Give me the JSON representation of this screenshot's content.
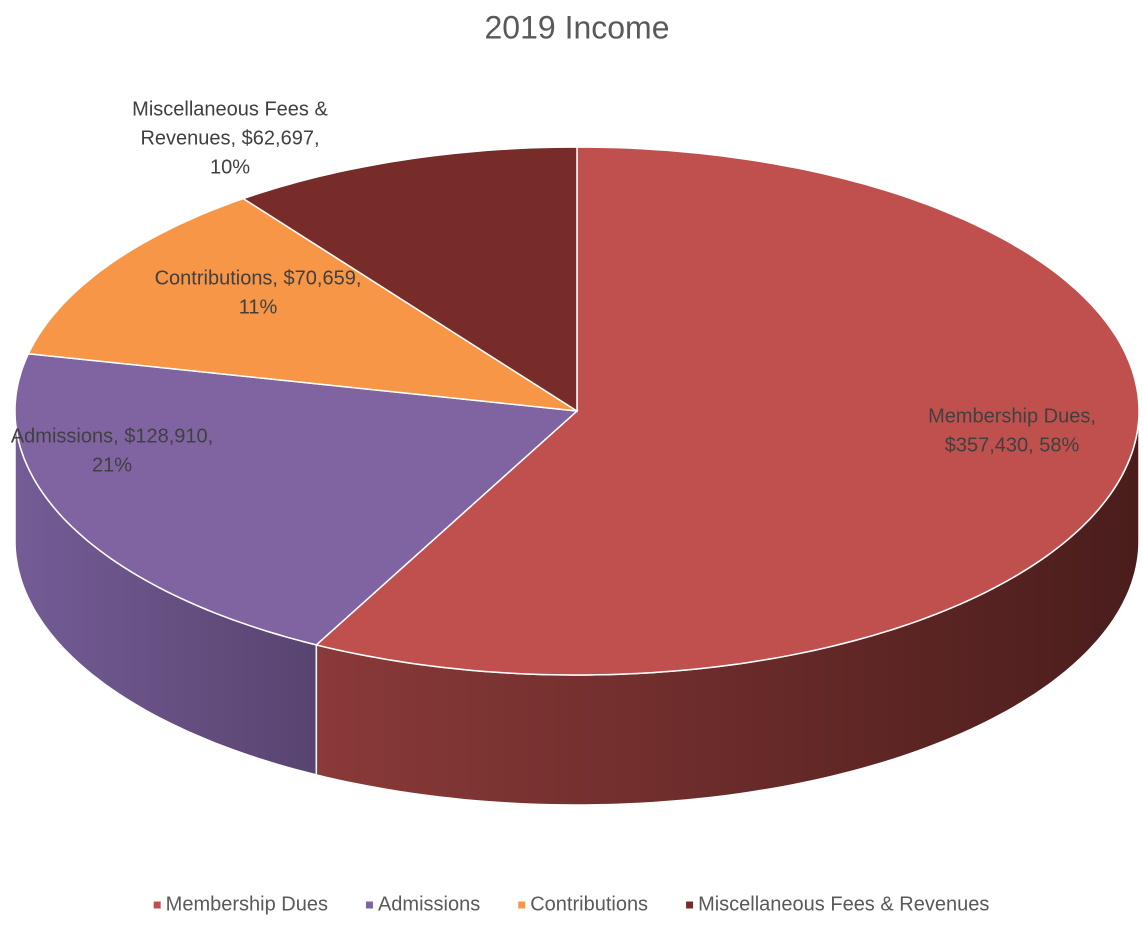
{
  "chart_data": {
    "type": "pie3d",
    "title": "2019 Income",
    "categories": [
      "Membership Dues",
      "Admissions",
      "Contributions",
      "Miscellaneous Fees & Revenues"
    ],
    "values": [
      357430,
      128910,
      70659,
      62697
    ],
    "value_labels": [
      [
        "Membership Dues,",
        "$357,430, 58%"
      ],
      [
        "Admissions, $128,910,",
        "21%"
      ],
      [
        "Contributions, $70,659,",
        "11%"
      ],
      [
        "Miscellaneous Fees &",
        "Revenues, $62,697,",
        "10%"
      ]
    ],
    "colors": [
      "#c0504d",
      "#8064a2",
      "#f79646",
      "#772c2a"
    ],
    "side_colors": [
      [
        "#8a3a38",
        "#4a1d1c"
      ],
      [
        "#745c96",
        "#584470"
      ],
      [
        "#c47534",
        "#a85f28"
      ],
      [
        "#5a2020",
        "#3e1515"
      ]
    ],
    "legend": "bottom"
  }
}
